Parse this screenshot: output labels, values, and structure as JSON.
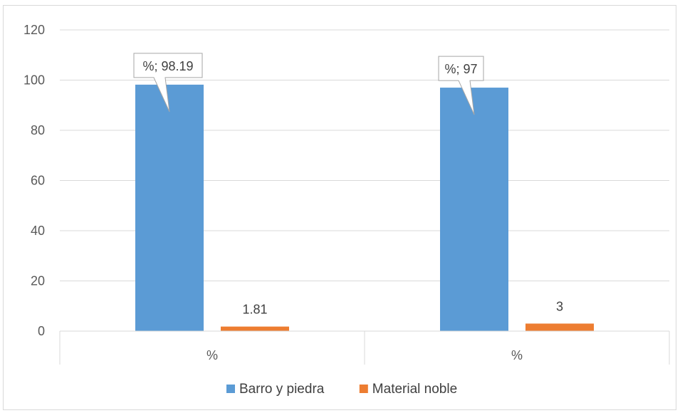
{
  "chart_data": {
    "type": "bar",
    "categories": [
      "%",
      "%"
    ],
    "series": [
      {
        "name": "Barro y piedra",
        "color": "#5b9bd5",
        "values": [
          98.19,
          97
        ]
      },
      {
        "name": "Material noble",
        "color": "#ed7d31",
        "values": [
          1.81,
          3
        ]
      }
    ],
    "data_labels": {
      "Barro y piedra": [
        "%; 98.19",
        "%; 97"
      ],
      "Material noble": [
        "1.81",
        "3"
      ]
    },
    "ylim": [
      0,
      120
    ],
    "yticks": [
      0,
      20,
      40,
      60,
      80,
      100,
      120
    ],
    "grid": true,
    "legend_position": "bottom",
    "title": "",
    "xlabel": "",
    "ylabel": ""
  }
}
